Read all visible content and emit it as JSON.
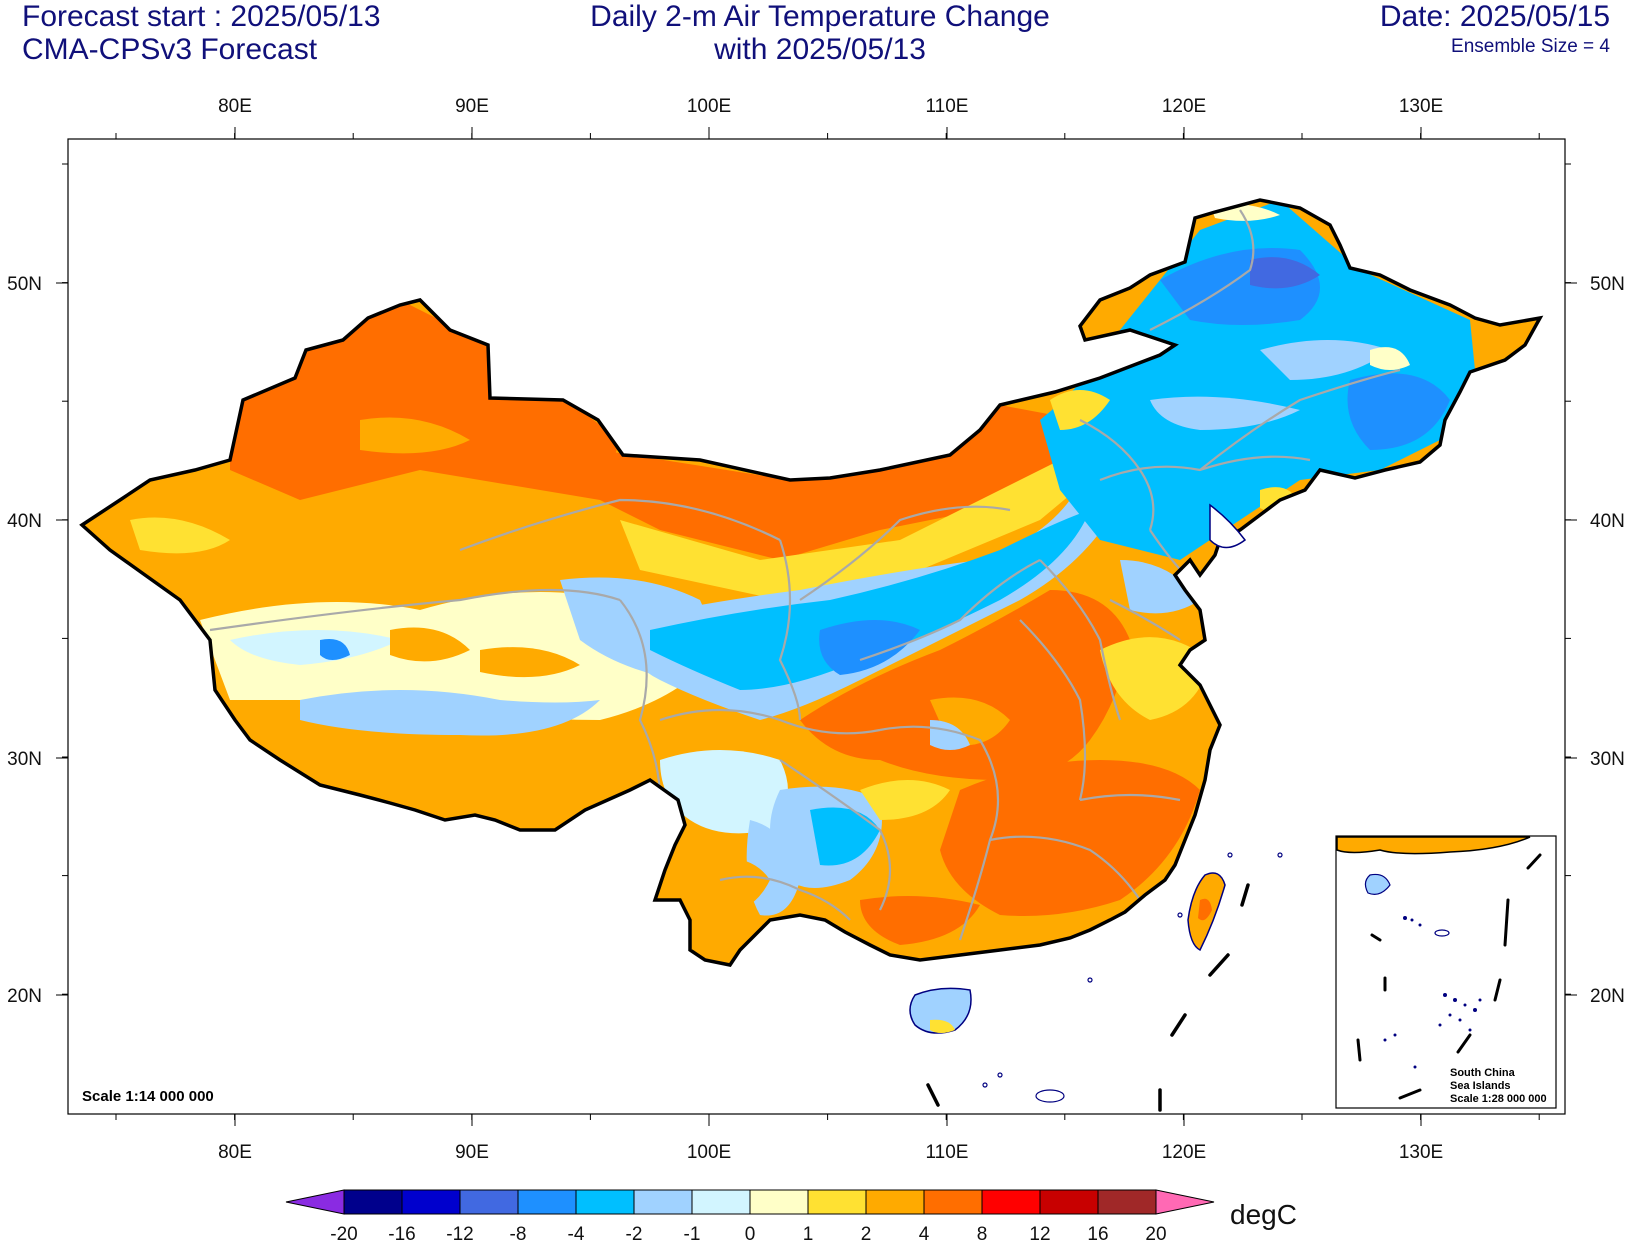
{
  "header": {
    "forecast_start": "Forecast start : 2025/05/13",
    "model": "CMA-CPSv3 Forecast",
    "title_line1": "Daily 2-m Air Temperature Change",
    "title_line2": "with 2025/05/13",
    "date": "Date: 2025/05/15",
    "ensemble": "Ensemble Size = 4"
  },
  "map": {
    "lon_labels": [
      "80E",
      "90E",
      "100E",
      "110E",
      "120E",
      "130E"
    ],
    "lat_labels": [
      "50N",
      "40N",
      "30N",
      "20N"
    ],
    "scale_main": "Scale 1:14 000 000",
    "inset": {
      "title_line1": "South China",
      "title_line2": "Sea Islands",
      "scale": "Scale 1:28 000 000"
    }
  },
  "colorbar": {
    "unit": "degC",
    "labels": [
      "-20",
      "-16",
      "-12",
      "-8",
      "-4",
      "-2",
      "-1",
      "0",
      "1",
      "2",
      "4",
      "8",
      "12",
      "16",
      "20"
    ],
    "colors": [
      "#00008c",
      "#0000cd",
      "#4169e1",
      "#1e90ff",
      "#00bfff",
      "#a0d2ff",
      "#d2f5ff",
      "#ffffc8",
      "#ffe132",
      "#ffaa00",
      "#ff6e00",
      "#ff0000",
      "#c80000",
      "#a02828"
    ],
    "low_arrow_color": "#8a2be2",
    "high_arrow_color": "#ff69b4"
  },
  "colors": {
    "text": "#10107a",
    "country_border": "#000000",
    "province_border": "#a9a9a9",
    "coast": "#000080"
  }
}
